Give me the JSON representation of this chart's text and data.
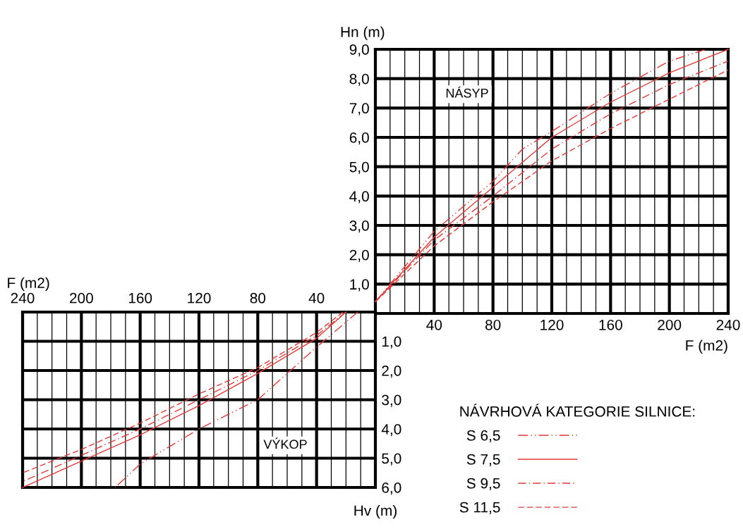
{
  "chart_data": [
    {
      "type": "line",
      "xlabel": "F (m2)",
      "ylabel": "Hn (m)",
      "annotations": [
        "NÁSYP"
      ],
      "legend": "bottom",
      "legend_title": "NÁVRHOVÁ KATEGORIE SILNICE:",
      "grid": true,
      "marker": "none",
      "xlim": [
        0,
        240
      ],
      "ylim": [
        0,
        9
      ],
      "xticks": [
        {
          "value": 10,
          "label": null
        },
        {
          "value": 20,
          "label": null
        },
        {
          "value": 30,
          "label": null
        },
        40,
        {
          "value": 50,
          "label": null
        },
        {
          "value": 60,
          "label": null
        },
        {
          "value": 70,
          "label": null
        },
        80,
        {
          "value": 90,
          "label": null
        },
        {
          "value": 100,
          "label": null
        },
        {
          "value": 110,
          "label": null
        },
        120,
        {
          "value": 130,
          "label": null
        },
        {
          "value": 140,
          "label": null
        },
        {
          "value": 150,
          "label": null
        },
        160,
        {
          "value": 170,
          "label": null
        },
        {
          "value": 180,
          "label": null
        },
        {
          "value": 190,
          "label": null
        },
        200,
        {
          "value": 210,
          "label": null
        },
        {
          "value": 220,
          "label": null
        },
        {
          "value": 230,
          "label": null
        },
        240
      ],
      "yticks": [
        {
          "value": 1,
          "label": "1,0"
        },
        {
          "value": 2,
          "label": "2,0"
        },
        {
          "value": 3,
          "label": "3,0"
        },
        {
          "value": 4,
          "label": "4,0"
        },
        {
          "value": 5,
          "label": "5,0"
        },
        {
          "value": 6,
          "label": "6,0"
        },
        {
          "value": 7,
          "label": "7,0"
        },
        {
          "value": 8,
          "label": "8,0"
        },
        {
          "value": 9,
          "label": "9,0"
        }
      ],
      "series": [
        {
          "name": "S 6,5",
          "color": "#e53935",
          "line_style": "dashdotdot",
          "x": [
            0,
            40,
            80,
            100,
            120,
            160,
            200,
            225
          ],
          "values": [
            0.4,
            2.8,
            4.5,
            5.6,
            6.2,
            7.5,
            8.6,
            9.0
          ]
        },
        {
          "name": "S 7,5",
          "color": "#e53935",
          "line_style": "solid",
          "x": [
            0,
            40,
            80,
            120,
            160,
            200,
            240
          ],
          "values": [
            0.4,
            2.6,
            4.3,
            6.0,
            7.2,
            8.2,
            9.0
          ]
        },
        {
          "name": "S 9,5",
          "color": "#e53935",
          "line_style": "dashdot",
          "x": [
            0,
            40,
            80,
            120,
            160,
            200,
            240
          ],
          "values": [
            0.4,
            2.5,
            4.0,
            5.6,
            6.8,
            7.8,
            8.6
          ]
        },
        {
          "name": "S 11,5",
          "color": "#e53935",
          "line_style": "dashed",
          "x": [
            0,
            40,
            80,
            120,
            160,
            200,
            240
          ],
          "values": [
            0.4,
            2.3,
            3.8,
            5.2,
            6.3,
            7.3,
            8.3
          ]
        }
      ]
    },
    {
      "type": "line",
      "xlabel": "F (m2)",
      "ylabel": "Hv (m)",
      "annotations": [
        "VÝKOP"
      ],
      "grid": true,
      "marker": "none",
      "xlim": [
        240,
        0
      ],
      "ylim": [
        6,
        0
      ],
      "xticks": [
        {
          "value": 10,
          "label": null
        },
        {
          "value": 20,
          "label": null
        },
        {
          "value": 30,
          "label": null
        },
        40,
        {
          "value": 50,
          "label": null
        },
        {
          "value": 60,
          "label": null
        },
        {
          "value": 70,
          "label": null
        },
        80,
        {
          "value": 90,
          "label": null
        },
        {
          "value": 100,
          "label": null
        },
        {
          "value": 110,
          "label": null
        },
        120,
        {
          "value": 130,
          "label": null
        },
        {
          "value": 140,
          "label": null
        },
        {
          "value": 150,
          "label": null
        },
        160,
        {
          "value": 170,
          "label": null
        },
        {
          "value": 180,
          "label": null
        },
        {
          "value": 190,
          "label": null
        },
        200,
        {
          "value": 210,
          "label": null
        },
        {
          "value": 220,
          "label": null
        },
        {
          "value": 230,
          "label": null
        },
        240
      ],
      "yticks": [
        {
          "value": 1,
          "label": "1,0"
        },
        {
          "value": 2,
          "label": "2,0"
        },
        {
          "value": 3,
          "label": "3,0"
        },
        {
          "value": 4,
          "label": "4,0"
        },
        {
          "value": 5,
          "label": "5,0"
        },
        {
          "value": 6,
          "label": "6,0"
        }
      ],
      "series": [
        {
          "color": "#e53935",
          "line_style": "dashdotdot",
          "x": [
            12,
            40,
            80,
            120,
            160,
            177
          ],
          "values": [
            0,
            1.2,
            3.0,
            4.0,
            5.2,
            6.0
          ]
        },
        {
          "color": "#e53935",
          "line_style": "solid",
          "x": [
            20,
            40,
            80,
            120,
            160,
            200,
            240
          ],
          "values": [
            0,
            0.9,
            2.1,
            3.2,
            4.2,
            5.1,
            6.0
          ]
        },
        {
          "color": "#e53935",
          "line_style": "dashdot",
          "x": [
            20,
            40,
            80,
            120,
            160,
            200,
            240
          ],
          "values": [
            0,
            0.8,
            2.0,
            3.0,
            4.0,
            4.9,
            5.8
          ]
        },
        {
          "color": "#e53935",
          "line_style": "dashed",
          "x": [
            22,
            40,
            80,
            120,
            160,
            200,
            240
          ],
          "values": [
            0,
            0.7,
            1.9,
            2.8,
            3.8,
            4.7,
            5.5
          ]
        }
      ]
    }
  ]
}
